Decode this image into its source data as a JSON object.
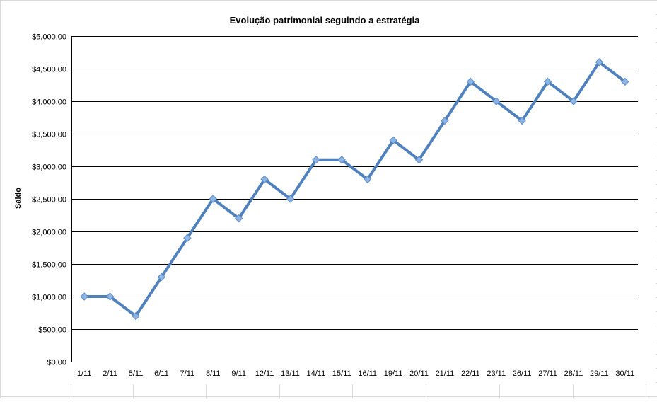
{
  "chart_data": {
    "type": "line",
    "title": "Evolução patrimonial seguindo a estratégia",
    "xlabel": "",
    "ylabel": "Saldo",
    "categories": [
      "1/11",
      "2/11",
      "5/11",
      "6/11",
      "7/11",
      "8/11",
      "9/11",
      "12/11",
      "13/11",
      "14/11",
      "15/11",
      "16/11",
      "19/11",
      "20/11",
      "21/11",
      "22/11",
      "23/11",
      "26/11",
      "27/11",
      "28/11",
      "29/11",
      "30/11"
    ],
    "series": [
      {
        "values": [
          1000,
          1000,
          700,
          1300,
          1900,
          2500,
          2200,
          2800,
          2500,
          3100,
          3100,
          2800,
          3400,
          3100,
          3700,
          4300,
          4000,
          3700,
          4300,
          4000,
          4600,
          4300
        ]
      }
    ],
    "ylim": [
      0,
      5000
    ],
    "yticks": [
      0,
      500,
      1000,
      1500,
      2000,
      2500,
      3000,
      3500,
      4000,
      4500,
      5000
    ],
    "ytick_labels": [
      "$0.00",
      "$500.00",
      "$1,000.00",
      "$1,500.00",
      "$2,000.00",
      "$2,500.00",
      "$3,000.00",
      "$3,500.00",
      "$4,000.00",
      "$4,500.00",
      "$5,000.00"
    ],
    "grid": true,
    "legend": "none",
    "colors": {
      "line": "#4f81bd",
      "marker": "#8db4e2",
      "gridline": "#000000",
      "sheet_grid": "#d9d9d9"
    }
  }
}
